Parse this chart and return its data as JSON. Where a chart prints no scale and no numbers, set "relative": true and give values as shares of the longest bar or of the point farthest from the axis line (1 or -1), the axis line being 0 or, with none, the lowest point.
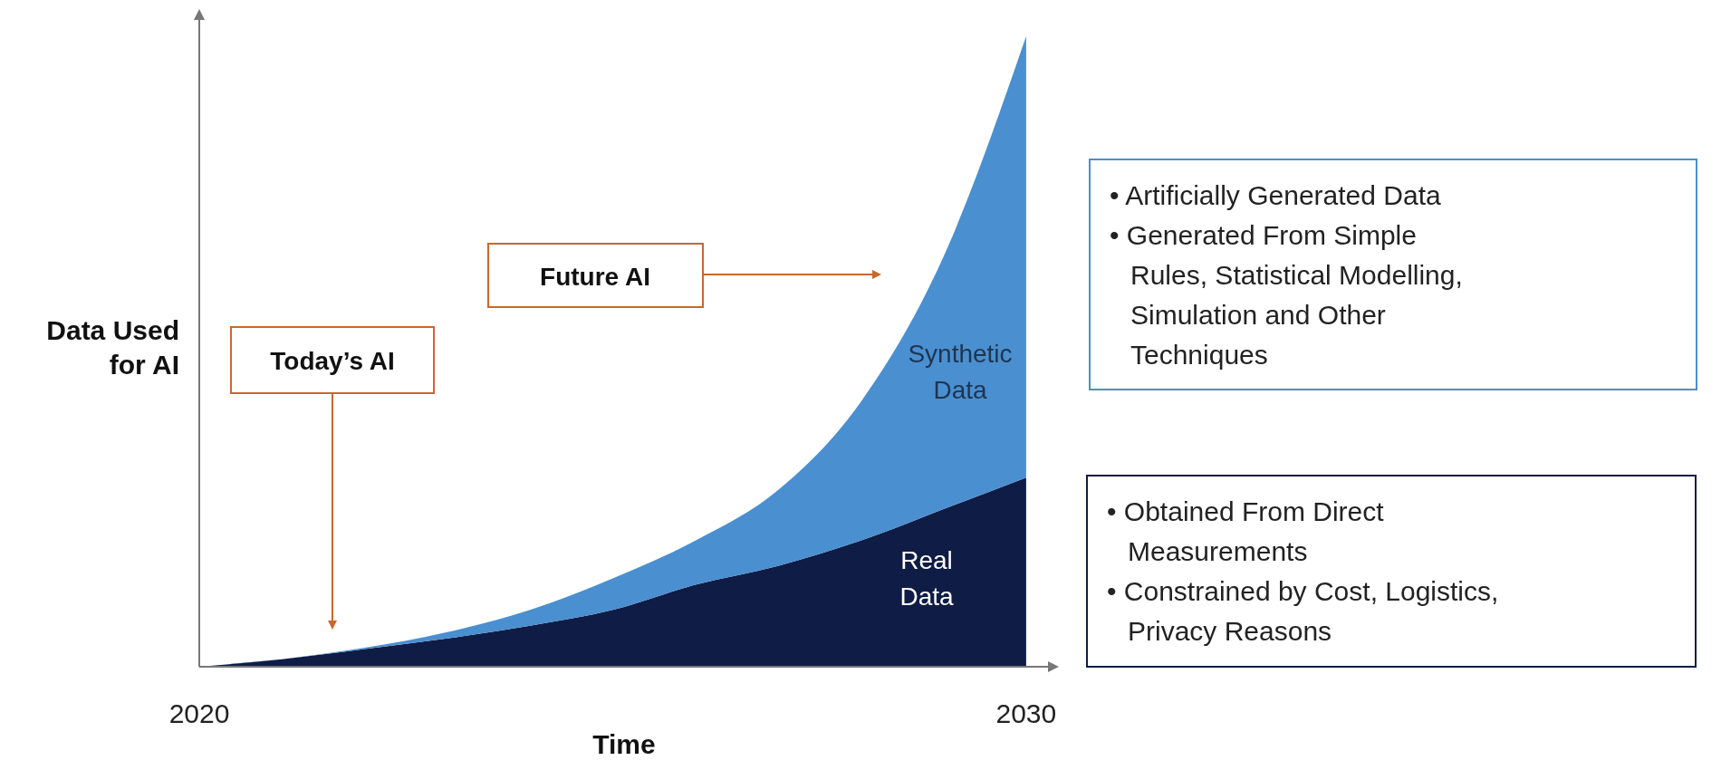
{
  "chart_data": {
    "type": "area",
    "stacked": true,
    "relative": true,
    "xlabel": "Time",
    "ylabel": "Data Used\nfor AI",
    "x": [
      2020,
      2021,
      2022,
      2023,
      2024,
      2025,
      2026,
      2027,
      2028,
      2029,
      2030
    ],
    "xlim": [
      2020,
      2030.33
    ],
    "xticks": [
      2020,
      2030
    ],
    "series": [
      {
        "name": "Real\nData",
        "color": "#0f1c45",
        "values": [
          0,
          0.012,
          0.028,
          0.045,
          0.065,
          0.09,
          0.13,
          0.16,
          0.2,
          0.25,
          0.3
        ]
      },
      {
        "name": "Synthetic\nData",
        "color": "#4a8fd0",
        "values": [
          0,
          0,
          0.002,
          0.01,
          0.025,
          0.05,
          0.07,
          0.12,
          0.22,
          0.4,
          0.7
        ]
      }
    ],
    "annotations": [
      "Today’s AI",
      "Future AI",
      "• Obtained From Direct\nMeasurements\n• Constrained by Cost, Logistics,\nPrivacy Reasons",
      "• Artificially Generated Data\n• Generated From Simple\nRules, Statistical Modelling,\nSimulation and Other\nTechniques"
    ]
  }
}
